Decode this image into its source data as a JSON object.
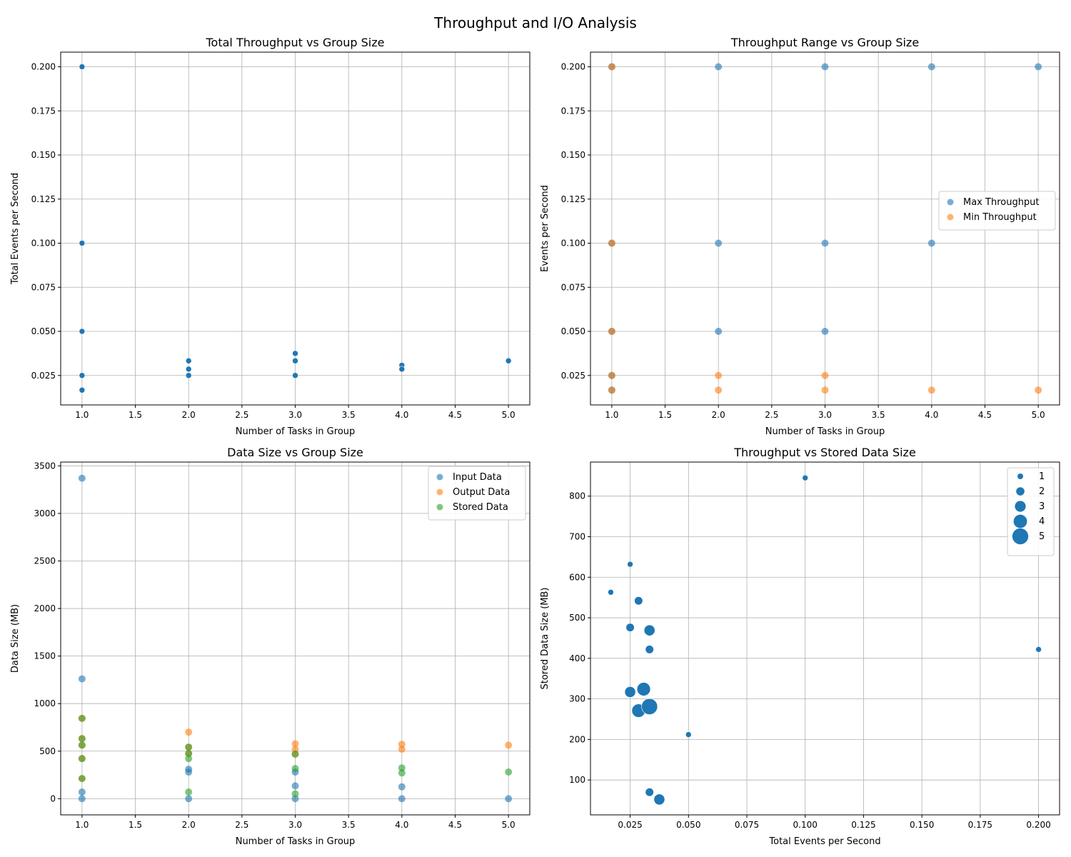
{
  "figure": {
    "title": "Throughput and I/O Analysis"
  },
  "colors": {
    "blue": "#1f77b4",
    "orange": "#ff7f0e",
    "green": "#2ca02c",
    "grid": "#b0b0b0",
    "axis": "#000000"
  },
  "chart_data": [
    {
      "type": "scatter",
      "title": "Total Throughput vs Group Size",
      "xlabel": "Number of Tasks in Group",
      "ylabel": "Total Events per Second",
      "xlim": [
        0.8,
        5.2
      ],
      "ylim": [
        0.0083,
        0.2083
      ],
      "xticks": [
        1.0,
        1.5,
        2.0,
        2.5,
        3.0,
        3.5,
        4.0,
        4.5,
        5.0
      ],
      "xtick_labels": [
        "1.0",
        "1.5",
        "2.0",
        "2.5",
        "3.0",
        "3.5",
        "4.0",
        "4.5",
        "5.0"
      ],
      "yticks": [
        0.025,
        0.05,
        0.075,
        0.1,
        0.125,
        0.15,
        0.175,
        0.2
      ],
      "ytick_labels": [
        "0.025",
        "0.050",
        "0.075",
        "0.100",
        "0.125",
        "0.150",
        "0.175",
        "0.200"
      ],
      "grid": true,
      "series": [
        {
          "color": "#1f77b4",
          "alpha": 1.0,
          "marker_size": 4,
          "x": [
            1,
            1,
            1,
            1,
            1,
            2,
            2,
            2,
            3,
            3,
            3,
            4,
            4,
            5
          ],
          "y": [
            0.2,
            0.1,
            0.05,
            0.025,
            0.0167,
            0.0333,
            0.0286,
            0.025,
            0.0375,
            0.0333,
            0.025,
            0.0308,
            0.0286,
            0.0333
          ]
        }
      ]
    },
    {
      "type": "scatter",
      "title": "Throughput Range vs Group Size",
      "xlabel": "Number of Tasks in Group",
      "ylabel": "Events per Second",
      "xlim": [
        0.8,
        5.2
      ],
      "ylim": [
        0.0083,
        0.2083
      ],
      "xticks": [
        1.0,
        1.5,
        2.0,
        2.5,
        3.0,
        3.5,
        4.0,
        4.5,
        5.0
      ],
      "xtick_labels": [
        "1.0",
        "1.5",
        "2.0",
        "2.5",
        "3.0",
        "3.5",
        "4.0",
        "4.5",
        "5.0"
      ],
      "yticks": [
        0.025,
        0.05,
        0.075,
        0.1,
        0.125,
        0.15,
        0.175,
        0.2
      ],
      "ytick_labels": [
        "0.025",
        "0.050",
        "0.075",
        "0.100",
        "0.125",
        "0.150",
        "0.175",
        "0.200"
      ],
      "grid": true,
      "legend": "center-right",
      "series": [
        {
          "name": "Max Throughput",
          "color": "#1f77b4",
          "alpha": 0.6,
          "marker_size": 5,
          "x": [
            1,
            1,
            1,
            1,
            1,
            2,
            2,
            2,
            3,
            3,
            3,
            4,
            4,
            5
          ],
          "y": [
            0.2,
            0.1,
            0.05,
            0.025,
            0.0167,
            0.2,
            0.1,
            0.05,
            0.2,
            0.1,
            0.05,
            0.2,
            0.1,
            0.2
          ]
        },
        {
          "name": "Min Throughput",
          "color": "#ff7f0e",
          "alpha": 0.6,
          "marker_size": 5,
          "x": [
            1,
            1,
            1,
            1,
            1,
            2,
            2,
            3,
            3,
            4,
            5
          ],
          "y": [
            0.2,
            0.1,
            0.05,
            0.025,
            0.0167,
            0.025,
            0.0167,
            0.025,
            0.0167,
            0.0167,
            0.0167
          ]
        }
      ]
    },
    {
      "type": "scatter",
      "title": "Data Size vs Group Size",
      "xlabel": "Number of Tasks in Group",
      "ylabel": "Data Size (MB)",
      "xlim": [
        0.8,
        5.2
      ],
      "ylim": [
        -170,
        3540
      ],
      "xticks": [
        1.0,
        1.5,
        2.0,
        2.5,
        3.0,
        3.5,
        4.0,
        4.5,
        5.0
      ],
      "xtick_labels": [
        "1.0",
        "1.5",
        "2.0",
        "2.5",
        "3.0",
        "3.5",
        "4.0",
        "4.5",
        "5.0"
      ],
      "yticks": [
        0,
        500,
        1000,
        1500,
        2000,
        2500,
        3000,
        3500
      ],
      "ytick_labels": [
        "0",
        "500",
        "1000",
        "1500",
        "2000",
        "2500",
        "3000",
        "3500"
      ],
      "grid": true,
      "legend": "top-right",
      "series": [
        {
          "name": "Input Data",
          "color": "#1f77b4",
          "alpha": 0.6,
          "marker_size": 5,
          "x": [
            1,
            1,
            1,
            1,
            2,
            2,
            2,
            3,
            3,
            3,
            4,
            4,
            5
          ],
          "y": [
            3370,
            1260,
            70,
            0,
            310,
            280,
            0,
            280,
            135,
            0,
            125,
            0,
            0
          ]
        },
        {
          "name": "Output Data",
          "color": "#ff7f0e",
          "alpha": 0.6,
          "marker_size": 5,
          "x": [
            1,
            1,
            1,
            1,
            1,
            2,
            2,
            2,
            3,
            3,
            3,
            4,
            4,
            5
          ],
          "y": [
            845,
            632,
            563,
            422,
            212,
            700,
            542,
            476,
            578,
            520,
            469,
            572,
            520,
            563
          ]
        },
        {
          "name": "Stored Data",
          "color": "#2ca02c",
          "alpha": 0.6,
          "marker_size": 5,
          "x": [
            1,
            1,
            1,
            1,
            1,
            2,
            2,
            2,
            2,
            3,
            3,
            3,
            4,
            4,
            5
          ],
          "y": [
            845,
            632,
            563,
            422,
            212,
            542,
            476,
            422,
            70,
            469,
            317,
            52,
            324,
            271,
            281
          ]
        }
      ]
    },
    {
      "type": "scatter",
      "title": "Throughput vs Stored Data Size",
      "xlabel": "Total Events per Second",
      "ylabel": "Stored Data Size (MB)",
      "xlim": [
        0.008,
        0.209
      ],
      "ylim": [
        14,
        884
      ],
      "xticks": [
        0.025,
        0.05,
        0.075,
        0.1,
        0.125,
        0.15,
        0.175,
        0.2
      ],
      "xtick_labels": [
        "0.025",
        "0.050",
        "0.075",
        "0.100",
        "0.125",
        "0.150",
        "0.175",
        "0.200"
      ],
      "yticks": [
        100,
        200,
        300,
        400,
        500,
        600,
        700,
        800
      ],
      "ytick_labels": [
        "100",
        "200",
        "300",
        "400",
        "500",
        "600",
        "700",
        "800"
      ],
      "grid": true,
      "legend": "top-right",
      "size_legend": {
        "labels": [
          "1",
          "2",
          "3",
          "4",
          "5"
        ],
        "values": [
          1,
          2,
          3,
          4,
          5
        ]
      },
      "series": [
        {
          "color": "#1f77b4",
          "alpha": 1.0,
          "x": [
            0.1,
            0.025,
            0.0167,
            0.0286,
            0.025,
            0.0333,
            0.0333,
            0.2,
            0.025,
            0.0308,
            0.0286,
            0.0333,
            0.05,
            0.0333,
            0.0375
          ],
          "y": [
            845,
            632,
            563,
            542,
            476,
            469,
            422,
            422,
            317,
            324,
            271,
            281,
            212,
            70,
            52
          ],
          "size": [
            1,
            1,
            1,
            2,
            2,
            3,
            2,
            1,
            3,
            4,
            4,
            5,
            1,
            2,
            3
          ]
        }
      ]
    }
  ]
}
